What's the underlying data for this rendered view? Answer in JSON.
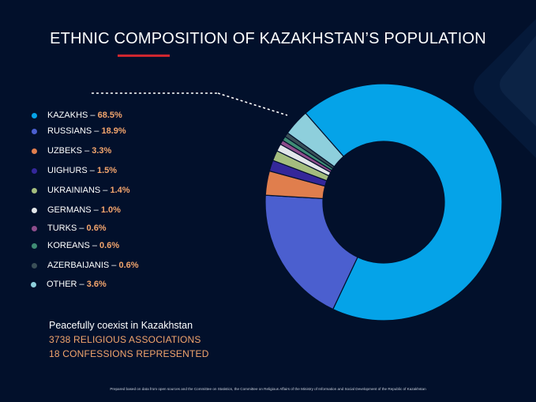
{
  "slide": {
    "title": "ETHNIC COMPOSITION OF KAZAKHSTAN’S POPULATION",
    "info": {
      "line1": "Peacefully coexist in Kazakhstan",
      "line2": "3738 RELIGIOUS ASSOCIATIONS",
      "line3": "18 CONFESSIONS REPRESENTED"
    },
    "footnote": "Prepared based on data from open sources and the Committee on Statistics, the Committee on Religious Affairs of the Ministry of Information and Social Development of the Republic of Kazakhstan"
  },
  "colors": {
    "background": "#02102b",
    "accent_underline": "#d0262f",
    "value_text": "#f3a56d"
  },
  "chart_data": {
    "type": "pie",
    "variant": "donut",
    "title": "ETHNIC COMPOSITION OF KAZAKHSTAN’S POPULATION",
    "legend_position": "left",
    "categories": [
      "KAZAKHS",
      "RUSSIANS",
      "UZBEKS",
      "UIGHURS",
      "UKRAINIANS",
      "GERMANS",
      "TURKS",
      "KOREANS",
      "AZERBAIJANIS",
      "OTHER"
    ],
    "values": [
      68.5,
      18.9,
      3.3,
      1.5,
      1.4,
      1.0,
      0.6,
      0.6,
      0.6,
      3.6
    ],
    "value_labels": [
      "68.5%",
      "18.9%",
      "3.3%",
      "1.5%",
      "1.4%",
      "1.0%",
      "0.6%",
      "0.6%",
      "0.6%",
      "3.6%"
    ],
    "colors": [
      "#05a3e8",
      "#4b5fcf",
      "#e07e4d",
      "#34279a",
      "#a4bd7e",
      "#e2e6ea",
      "#8d4d8b",
      "#3f8c74",
      "#3a4f57",
      "#8ecfdc"
    ]
  }
}
